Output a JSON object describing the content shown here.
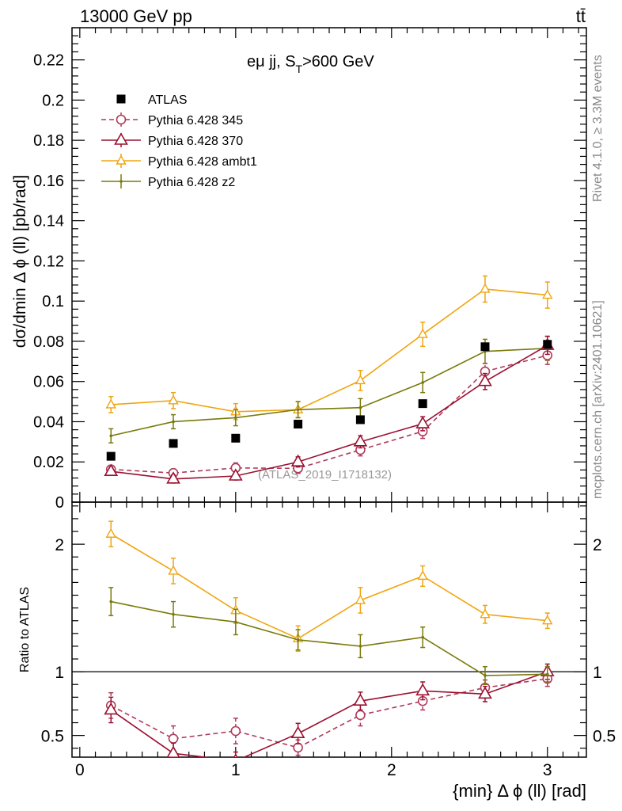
{
  "header": {
    "energy_label": "13000 GeV pp",
    "process_label": "tt̄",
    "side_rivet": "Rivet 4.1.0, ≥ 3.3M events",
    "side_mcplots": "mcplots.cern.ch [arXiv:2401.10621]",
    "watermark": "(ATLAS_2019_I1718132)"
  },
  "chart_data": [
    {
      "type": "line",
      "panel": "main",
      "title": "eμ jj, S_T>600 GeV",
      "title_main": "eμ jj, S",
      "title_sub": "T",
      "title_tail": ">600 GeV",
      "xlabel": "{min} Δ ϕ (ll) [rad]",
      "ylabel": "dσ/dmin Δ ϕ (ll) [pb/rad]",
      "xlim": [
        -0.05,
        3.25
      ],
      "ylim": [
        0,
        0.236
      ],
      "x": [
        0.2,
        0.6,
        1.0,
        1.4,
        1.8,
        2.2,
        2.6,
        3.0
      ],
      "yticks": [
        0,
        0.02,
        0.04,
        0.06,
        0.08,
        0.1,
        0.12,
        0.14,
        0.16,
        0.18,
        0.2,
        0.22
      ],
      "ytick_labels": [
        "0",
        "0.02",
        "0.04",
        "0.06",
        "0.08",
        "0.1",
        "0.12",
        "0.14",
        "0.16",
        "0.18",
        "0.2",
        "0.22"
      ],
      "series": [
        {
          "name": "ATLAS",
          "color": "#000000",
          "marker": "square",
          "values": [
            0.0228,
            0.0292,
            0.0318,
            0.0388,
            0.041,
            0.049,
            0.0773,
            0.0785
          ],
          "errors": [
            0,
            0,
            0,
            0,
            0,
            0,
            0,
            0
          ]
        },
        {
          "name": "Pythia 6.428 345",
          "color": "#b03a5b",
          "marker": "circle",
          "dashed": true,
          "values": [
            0.0163,
            0.0145,
            0.017,
            0.0168,
            0.026,
            0.0352,
            0.065,
            0.073
          ],
          "errors": [
            0.002,
            0.002,
            0.0025,
            0.0025,
            0.003,
            0.0035,
            0.004,
            0.0045
          ]
        },
        {
          "name": "Pythia 6.428 370",
          "color": "#9b1030",
          "marker": "triangle",
          "values": [
            0.0153,
            0.0115,
            0.013,
            0.02,
            0.03,
            0.039,
            0.06,
            0.078
          ],
          "errors": [
            0.002,
            0.002,
            0.002,
            0.0025,
            0.003,
            0.0035,
            0.004,
            0.0045
          ]
        },
        {
          "name": "Pythia 6.428 ambt1",
          "color": "#f0a510",
          "marker": "triangle-small",
          "values": [
            0.0485,
            0.0505,
            0.045,
            0.046,
            0.0605,
            0.0835,
            0.106,
            0.103
          ],
          "errors": [
            0.004,
            0.004,
            0.004,
            0.004,
            0.005,
            0.006,
            0.0065,
            0.0065
          ]
        },
        {
          "name": "Pythia 6.428 z2",
          "color": "#7a7a0a",
          "marker": "dot",
          "values": [
            0.033,
            0.04,
            0.042,
            0.046,
            0.047,
            0.0595,
            0.075,
            0.0765
          ],
          "errors": [
            0.0035,
            0.0035,
            0.004,
            0.004,
            0.0045,
            0.005,
            0.006,
            0.006
          ]
        }
      ]
    },
    {
      "type": "line",
      "panel": "ratio",
      "xlabel": "{min} Δ ϕ (ll) [rad]",
      "ylabel": "Ratio to ATLAS",
      "xlim": [
        -0.05,
        3.25
      ],
      "ylim": [
        0.33,
        2.33
      ],
      "x": [
        0.2,
        0.6,
        1.0,
        1.4,
        1.8,
        2.2,
        2.6,
        3.0
      ],
      "xticks": [
        0,
        1,
        2,
        3
      ],
      "xtick_labels": [
        "0",
        "1",
        "2",
        "3"
      ],
      "yticks": [
        0.5,
        1,
        2
      ],
      "ytick_labels": [
        "0.5",
        "1",
        "2"
      ],
      "reference": 1,
      "series": [
        {
          "name": "Pythia 6.428 345",
          "color": "#b03a5b",
          "marker": "circle",
          "dashed": true,
          "values": [
            0.735,
            0.475,
            0.535,
            0.405,
            0.66,
            0.77,
            0.875,
            0.945
          ],
          "errors": [
            0.1,
            0.1,
            0.1,
            0.06,
            0.085,
            0.07,
            0.06,
            0.06
          ]
        },
        {
          "name": "Pythia 6.428 370",
          "color": "#9b1030",
          "marker": "triangle",
          "values": [
            0.7,
            0.36,
            0.3,
            0.515,
            0.77,
            0.85,
            0.825,
            1.0
          ],
          "errors": [
            0.1,
            0.08,
            0.07,
            0.08,
            0.07,
            0.07,
            0.06,
            0.06
          ]
        },
        {
          "name": "Pythia 6.428 ambt1",
          "color": "#f0a510",
          "marker": "triangle-small",
          "values": [
            2.08,
            1.79,
            1.48,
            1.26,
            1.56,
            1.75,
            1.45,
            1.4
          ],
          "errors": [
            0.1,
            0.1,
            0.1,
            0.1,
            0.1,
            0.08,
            0.07,
            0.06
          ]
        },
        {
          "name": "Pythia 6.428 z2",
          "color": "#7a7a0a",
          "marker": "dot",
          "values": [
            1.55,
            1.45,
            1.39,
            1.25,
            1.2,
            1.27,
            0.97,
            0.98
          ],
          "errors": [
            0.11,
            0.1,
            0.1,
            0.08,
            0.09,
            0.08,
            0.07,
            0.06
          ]
        }
      ]
    }
  ]
}
